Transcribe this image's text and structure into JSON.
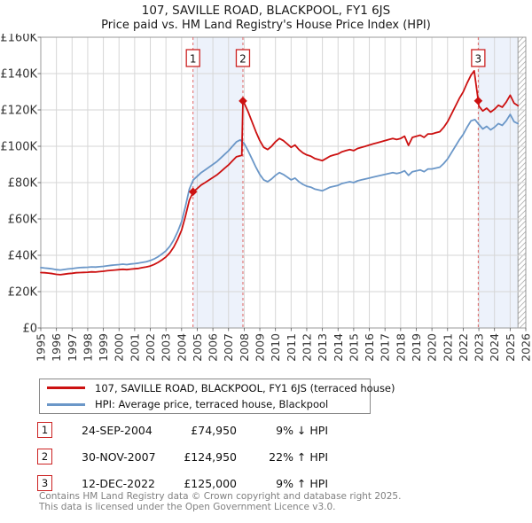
{
  "title": "107, SAVILLE ROAD, BLACKPOOL, FY1 6JS",
  "subtitle": "Price paid vs. HM Land Registry's House Price Index (HPI)",
  "colors": {
    "property_line": "#cc1111",
    "hpi_line": "#6b97c8",
    "shaded_band": "#edf2fb",
    "grid": "#d6d6d6",
    "frame": "#999999",
    "sale_dashed_line": "#e06666",
    "marker_box_border": "#cc2222",
    "hatch_line": "#b0b0b0",
    "tick": "#555555",
    "axis_text": "#333333",
    "footer_text": "#808080"
  },
  "chart_data": {
    "type": "line",
    "title": "107, SAVILLE ROAD, BLACKPOOL, FY1 6JS",
    "subtitle": "Price paid vs. HM Land Registry's House Price Index (HPI)",
    "xlabel": "",
    "ylabel": "",
    "xlim": [
      1995,
      2026
    ],
    "ylim": [
      0,
      160000
    ],
    "grid": true,
    "legend_position": "below",
    "x_axis": {
      "ticks": [
        1995,
        1996,
        1997,
        1998,
        1999,
        2000,
        2001,
        2002,
        2003,
        2004,
        2005,
        2006,
        2007,
        2008,
        2009,
        2010,
        2011,
        2012,
        2013,
        2014,
        2015,
        2016,
        2017,
        2018,
        2019,
        2020,
        2021,
        2022,
        2023,
        2024,
        2025,
        2026
      ]
    },
    "y_axis": {
      "tick_values": [
        0,
        20000,
        40000,
        60000,
        80000,
        100000,
        120000,
        140000,
        160000
      ],
      "tick_labels": [
        "£0",
        "£20K",
        "£40K",
        "£60K",
        "£80K",
        "£100K",
        "£120K",
        "£140K",
        "£160K"
      ]
    },
    "bands": [
      {
        "from": 2004.73,
        "to": 2007.92
      },
      {
        "from": 2022.96,
        "to": 2025.5
      }
    ],
    "hatch_region": {
      "from": 2025.5,
      "to": 2026
    },
    "sales": [
      {
        "label": "1",
        "x": 2004.73,
        "price": 74950
      },
      {
        "label": "2",
        "x": 2007.92,
        "price": 124950
      },
      {
        "label": "3",
        "x": 2022.96,
        "price": 125000
      }
    ],
    "series": [
      {
        "name": "107, SAVILLE ROAD, BLACKPOOL, FY1 6JS (terraced house)",
        "color_key": "property_line",
        "points": [
          [
            1995,
            30500
          ],
          [
            1995.25,
            30400
          ],
          [
            1995.5,
            30200
          ],
          [
            1995.75,
            29900
          ],
          [
            1996,
            29500
          ],
          [
            1996.25,
            29300
          ],
          [
            1996.5,
            29600
          ],
          [
            1996.75,
            29900
          ],
          [
            1997,
            30100
          ],
          [
            1997.25,
            30400
          ],
          [
            1997.5,
            30500
          ],
          [
            1997.75,
            30600
          ],
          [
            1998,
            30700
          ],
          [
            1998.25,
            30900
          ],
          [
            1998.5,
            30800
          ],
          [
            1998.75,
            31000
          ],
          [
            1999,
            31200
          ],
          [
            1999.25,
            31500
          ],
          [
            1999.5,
            31700
          ],
          [
            1999.75,
            31900
          ],
          [
            2000,
            32100
          ],
          [
            2000.25,
            32300
          ],
          [
            2000.5,
            32100
          ],
          [
            2000.75,
            32400
          ],
          [
            2001,
            32600
          ],
          [
            2001.25,
            32800
          ],
          [
            2001.5,
            33200
          ],
          [
            2001.75,
            33600
          ],
          [
            2002,
            34100
          ],
          [
            2002.25,
            35000
          ],
          [
            2002.5,
            36100
          ],
          [
            2002.75,
            37500
          ],
          [
            2003,
            39100
          ],
          [
            2003.25,
            41400
          ],
          [
            2003.5,
            44600
          ],
          [
            2003.75,
            48800
          ],
          [
            2004,
            53800
          ],
          [
            2004.25,
            61600
          ],
          [
            2004.5,
            70400
          ],
          [
            2004.75,
            74950
          ],
          [
            2005,
            76800
          ],
          [
            2005.25,
            78700
          ],
          [
            2005.5,
            80000
          ],
          [
            2005.75,
            81400
          ],
          [
            2006,
            82800
          ],
          [
            2006.25,
            84200
          ],
          [
            2006.5,
            86000
          ],
          [
            2006.75,
            87900
          ],
          [
            2007,
            89700
          ],
          [
            2007.25,
            92000
          ],
          [
            2007.5,
            94200
          ],
          [
            2007.85,
            95000
          ],
          [
            2007.92,
            124950
          ],
          [
            2008,
            123800
          ],
          [
            2008.25,
            119000
          ],
          [
            2008.5,
            113500
          ],
          [
            2008.75,
            108000
          ],
          [
            2009,
            103100
          ],
          [
            2009.25,
            99400
          ],
          [
            2009.5,
            98200
          ],
          [
            2009.75,
            100000
          ],
          [
            2010,
            102500
          ],
          [
            2010.25,
            104300
          ],
          [
            2010.5,
            103100
          ],
          [
            2010.75,
            101300
          ],
          [
            2011,
            99400
          ],
          [
            2011.25,
            100700
          ],
          [
            2011.5,
            98200
          ],
          [
            2011.75,
            96400
          ],
          [
            2012,
            95200
          ],
          [
            2012.25,
            94600
          ],
          [
            2012.5,
            93300
          ],
          [
            2012.75,
            92700
          ],
          [
            2013,
            92100
          ],
          [
            2013.25,
            93300
          ],
          [
            2013.5,
            94600
          ],
          [
            2013.75,
            95200
          ],
          [
            2014,
            95800
          ],
          [
            2014.25,
            97000
          ],
          [
            2014.5,
            97600
          ],
          [
            2014.75,
            98200
          ],
          [
            2015,
            97600
          ],
          [
            2015.25,
            98800
          ],
          [
            2015.5,
            99400
          ],
          [
            2015.75,
            100000
          ],
          [
            2016,
            100700
          ],
          [
            2016.25,
            101300
          ],
          [
            2016.5,
            101900
          ],
          [
            2016.75,
            102500
          ],
          [
            2017,
            103100
          ],
          [
            2017.25,
            103700
          ],
          [
            2017.5,
            104300
          ],
          [
            2017.75,
            103700
          ],
          [
            2018,
            104300
          ],
          [
            2018.25,
            105500
          ],
          [
            2018.5,
            100500
          ],
          [
            2018.75,
            104900
          ],
          [
            2019,
            105500
          ],
          [
            2019.25,
            106100
          ],
          [
            2019.5,
            104900
          ],
          [
            2019.75,
            106800
          ],
          [
            2020,
            106800
          ],
          [
            2020.25,
            107400
          ],
          [
            2020.5,
            108000
          ],
          [
            2020.75,
            110400
          ],
          [
            2021,
            113500
          ],
          [
            2021.25,
            117700
          ],
          [
            2021.5,
            122000
          ],
          [
            2021.75,
            126300
          ],
          [
            2022,
            129900
          ],
          [
            2022.25,
            134800
          ],
          [
            2022.5,
            139100
          ],
          [
            2022.7,
            141500
          ],
          [
            2022.96,
            125000
          ],
          [
            2023,
            122100
          ],
          [
            2023.25,
            119400
          ],
          [
            2023.5,
            121000
          ],
          [
            2023.75,
            118800
          ],
          [
            2024,
            120400
          ],
          [
            2024.25,
            122600
          ],
          [
            2024.5,
            121500
          ],
          [
            2024.75,
            124300
          ],
          [
            2025,
            128100
          ],
          [
            2025.25,
            123700
          ],
          [
            2025.5,
            122300
          ]
        ]
      },
      {
        "name": "HPI: Average price, terraced house, Blackpool",
        "color_key": "hpi_line",
        "points": [
          [
            1995,
            33200
          ],
          [
            1995.25,
            33000
          ],
          [
            1995.5,
            32800
          ],
          [
            1995.75,
            32500
          ],
          [
            1996,
            32100
          ],
          [
            1996.25,
            31900
          ],
          [
            1996.5,
            32200
          ],
          [
            1996.75,
            32500
          ],
          [
            1997,
            32700
          ],
          [
            1997.25,
            33000
          ],
          [
            1997.5,
            33200
          ],
          [
            1997.75,
            33300
          ],
          [
            1998,
            33400
          ],
          [
            1998.25,
            33600
          ],
          [
            1998.5,
            33500
          ],
          [
            1998.75,
            33700
          ],
          [
            1999,
            33900
          ],
          [
            1999.25,
            34200
          ],
          [
            1999.5,
            34500
          ],
          [
            1999.75,
            34700
          ],
          [
            2000,
            34900
          ],
          [
            2000.25,
            35100
          ],
          [
            2000.5,
            34900
          ],
          [
            2000.75,
            35200
          ],
          [
            2001,
            35400
          ],
          [
            2001.25,
            35700
          ],
          [
            2001.5,
            36100
          ],
          [
            2001.75,
            36500
          ],
          [
            2002,
            37100
          ],
          [
            2002.25,
            38000
          ],
          [
            2002.5,
            39200
          ],
          [
            2002.75,
            40800
          ],
          [
            2003,
            42500
          ],
          [
            2003.25,
            45000
          ],
          [
            2003.5,
            48500
          ],
          [
            2003.75,
            53000
          ],
          [
            2004,
            58500
          ],
          [
            2004.25,
            67000
          ],
          [
            2004.5,
            76500
          ],
          [
            2004.75,
            81500
          ],
          [
            2005,
            83500
          ],
          [
            2005.25,
            85500
          ],
          [
            2005.5,
            87000
          ],
          [
            2005.75,
            88500
          ],
          [
            2006,
            90000
          ],
          [
            2006.25,
            91500
          ],
          [
            2006.5,
            93500
          ],
          [
            2006.75,
            95500
          ],
          [
            2007,
            97500
          ],
          [
            2007.25,
            100000
          ],
          [
            2007.5,
            102400
          ],
          [
            2007.75,
            103500
          ],
          [
            2008,
            101500
          ],
          [
            2008.25,
            97500
          ],
          [
            2008.5,
            93000
          ],
          [
            2008.75,
            88500
          ],
          [
            2009,
            84500
          ],
          [
            2009.25,
            81500
          ],
          [
            2009.5,
            80500
          ],
          [
            2009.75,
            82000
          ],
          [
            2010,
            84000
          ],
          [
            2010.25,
            85500
          ],
          [
            2010.5,
            84500
          ],
          [
            2010.75,
            83000
          ],
          [
            2011,
            81500
          ],
          [
            2011.25,
            82500
          ],
          [
            2011.5,
            80500
          ],
          [
            2011.75,
            79000
          ],
          [
            2012,
            78000
          ],
          [
            2012.25,
            77500
          ],
          [
            2012.5,
            76500
          ],
          [
            2012.75,
            76000
          ],
          [
            2013,
            75500
          ],
          [
            2013.25,
            76500
          ],
          [
            2013.5,
            77500
          ],
          [
            2013.75,
            78000
          ],
          [
            2014,
            78500
          ],
          [
            2014.25,
            79500
          ],
          [
            2014.5,
            80000
          ],
          [
            2014.75,
            80500
          ],
          [
            2015,
            80000
          ],
          [
            2015.25,
            81000
          ],
          [
            2015.5,
            81500
          ],
          [
            2015.75,
            82000
          ],
          [
            2016,
            82500
          ],
          [
            2016.25,
            83000
          ],
          [
            2016.5,
            83500
          ],
          [
            2016.75,
            84000
          ],
          [
            2017,
            84500
          ],
          [
            2017.25,
            85000
          ],
          [
            2017.5,
            85500
          ],
          [
            2017.75,
            85000
          ],
          [
            2018,
            85500
          ],
          [
            2018.25,
            86500
          ],
          [
            2018.5,
            84000
          ],
          [
            2018.75,
            86000
          ],
          [
            2019,
            86500
          ],
          [
            2019.25,
            87000
          ],
          [
            2019.5,
            86000
          ],
          [
            2019.75,
            87500
          ],
          [
            2020,
            87500
          ],
          [
            2020.25,
            88000
          ],
          [
            2020.5,
            88500
          ],
          [
            2020.75,
            90500
          ],
          [
            2021,
            93000
          ],
          [
            2021.25,
            96500
          ],
          [
            2021.5,
            100000
          ],
          [
            2021.75,
            103500
          ],
          [
            2022,
            106500
          ],
          [
            2022.25,
            110500
          ],
          [
            2022.5,
            114000
          ],
          [
            2022.75,
            114700
          ],
          [
            2023,
            112000
          ],
          [
            2023.25,
            109500
          ],
          [
            2023.5,
            111000
          ],
          [
            2023.75,
            109000
          ],
          [
            2024,
            110500
          ],
          [
            2024.25,
            112500
          ],
          [
            2024.5,
            111500
          ],
          [
            2024.75,
            114000
          ],
          [
            2025,
            117500
          ],
          [
            2025.25,
            113500
          ],
          [
            2025.5,
            112500
          ]
        ]
      }
    ]
  },
  "legend": {
    "items": [
      {
        "label": "107, SAVILLE ROAD, BLACKPOOL, FY1 6JS (terraced house)"
      },
      {
        "label": "HPI: Average price, terraced house, Blackpool"
      }
    ]
  },
  "transactions": [
    {
      "num": "1",
      "date": "24-SEP-2004",
      "price": "£74,950",
      "hpi": "9% ↓ HPI"
    },
    {
      "num": "2",
      "date": "30-NOV-2007",
      "price": "£124,950",
      "hpi": "22% ↑ HPI"
    },
    {
      "num": "3",
      "date": "12-DEC-2022",
      "price": "£125,000",
      "hpi": "9% ↑ HPI"
    }
  ],
  "footer": {
    "line1": "Contains HM Land Registry data © Crown copyright and database right 2025.",
    "line2": "This data is licensed under the Open Government Licence v3.0."
  }
}
